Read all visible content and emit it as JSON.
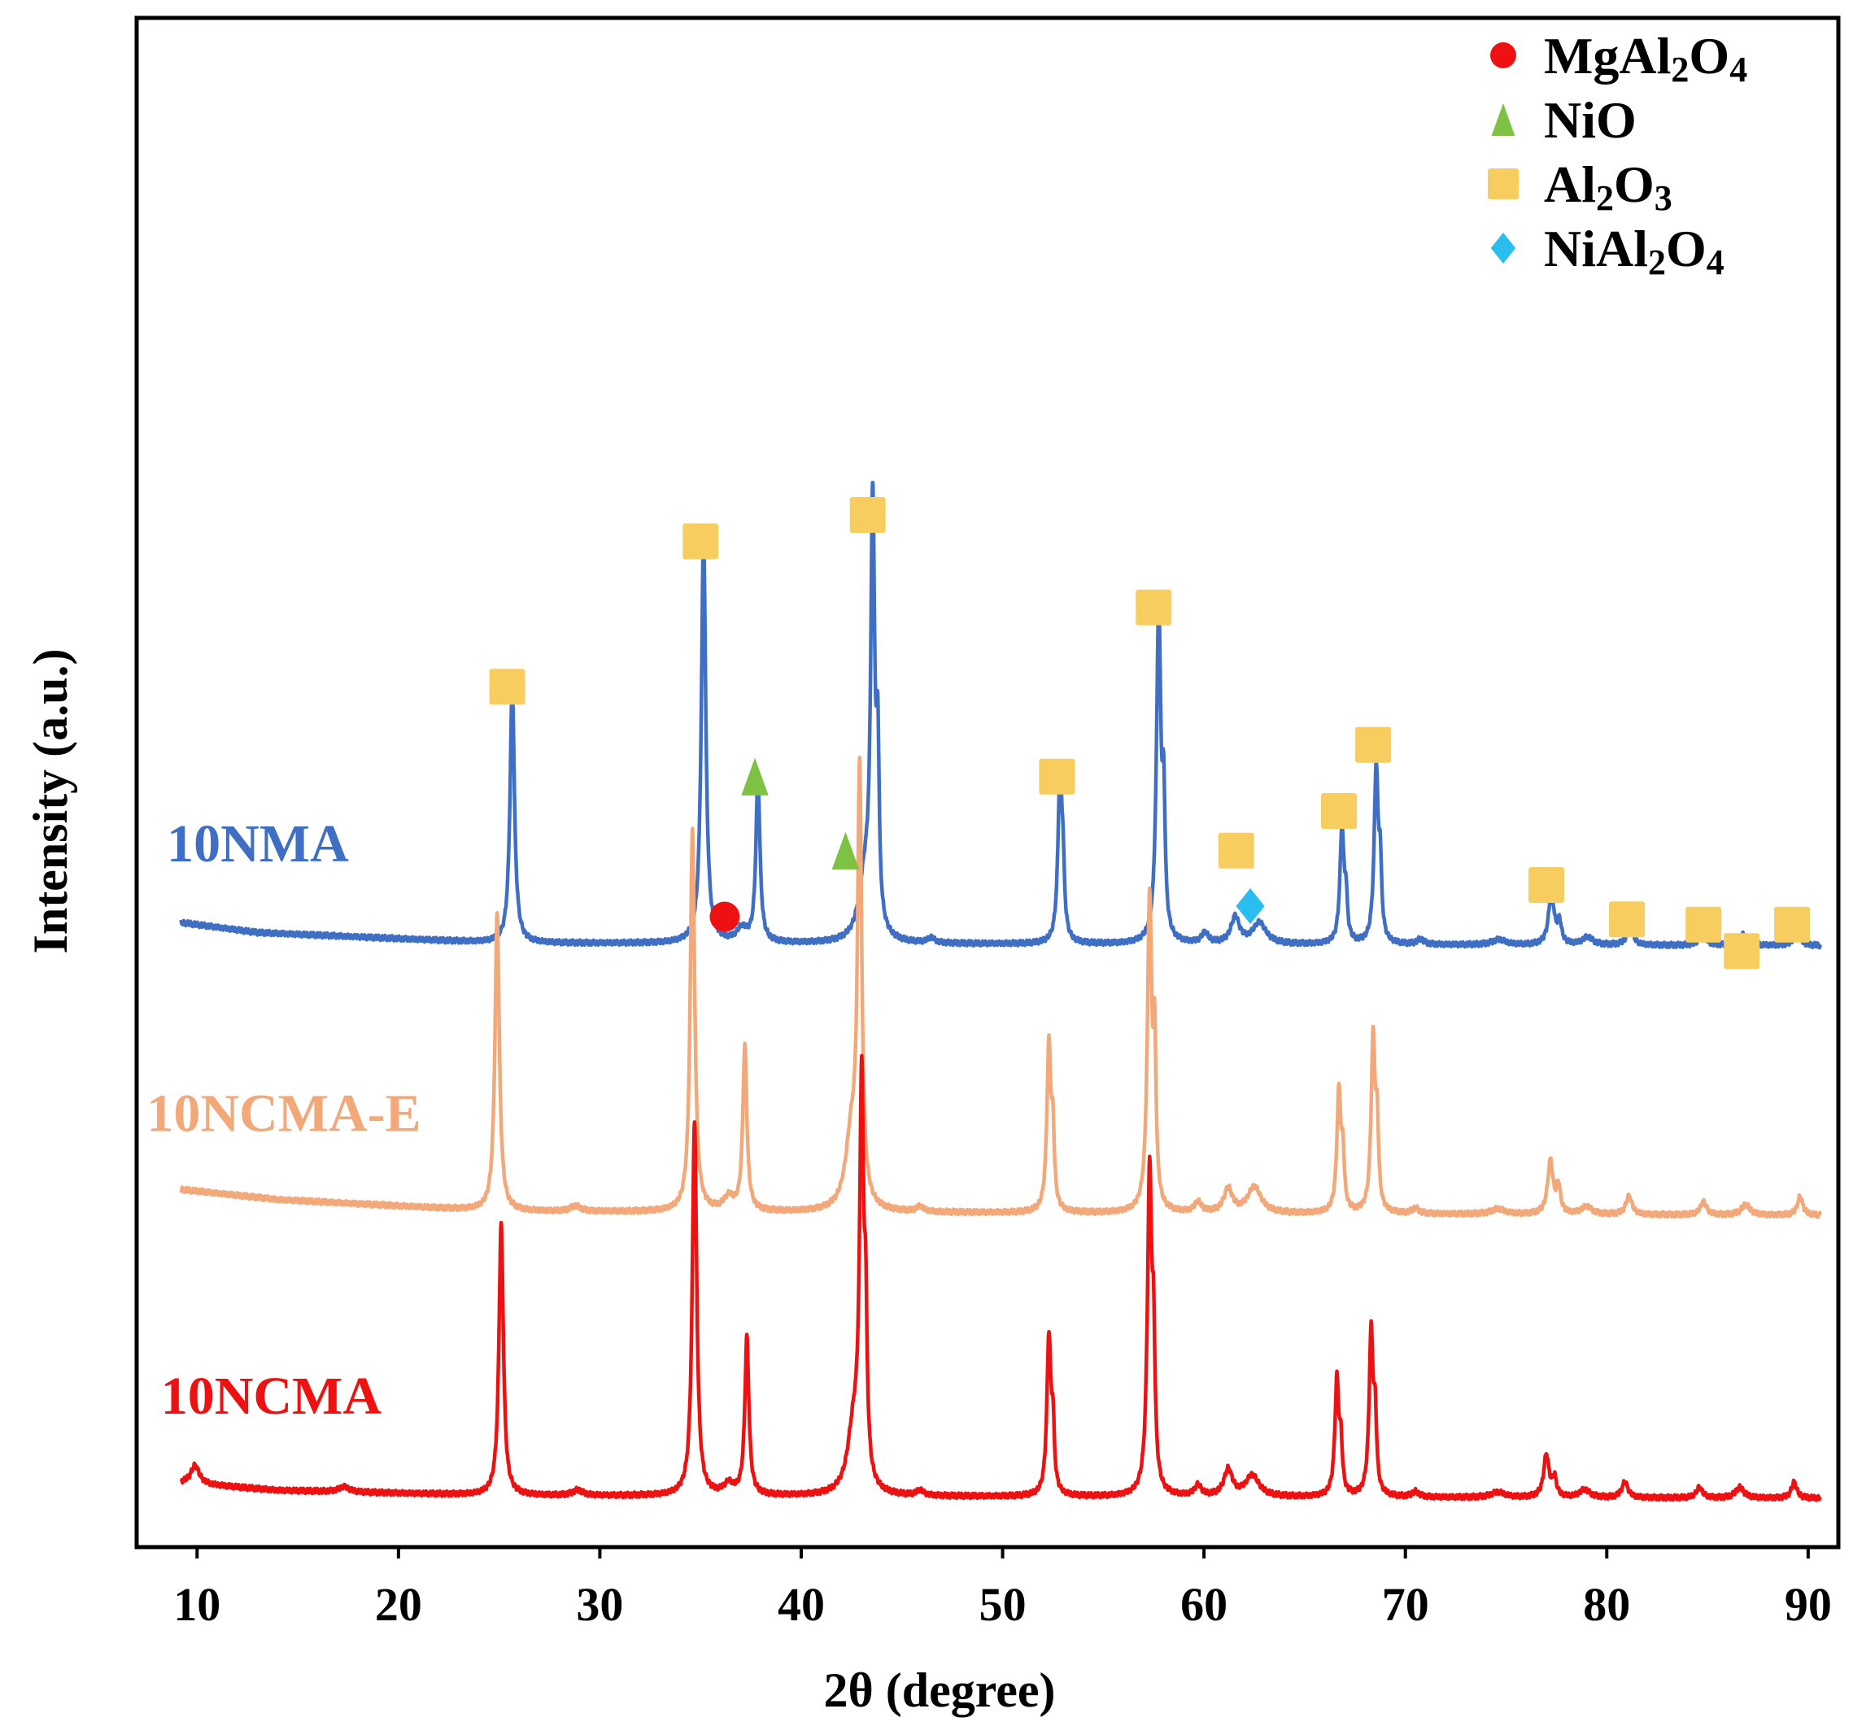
{
  "chart_data": {
    "type": "line",
    "title": "",
    "xlabel": "2θ (degree)",
    "ylabel": "Intensity (a.u.)",
    "xlim": [
      7,
      91.5
    ],
    "xticks": [
      10,
      20,
      30,
      40,
      50,
      60,
      70,
      80,
      90
    ],
    "yticks": [],
    "grid": false,
    "legend_position": "top-right",
    "legend": [
      {
        "marker": "circle",
        "color": "#ee1111",
        "label_parts": [
          {
            "t": "MgAl",
            "sub": false
          },
          {
            "t": "2",
            "sub": true
          },
          {
            "t": "O",
            "sub": false
          },
          {
            "t": "4",
            "sub": true
          }
        ],
        "name": "MgAl2O4"
      },
      {
        "marker": "triangle",
        "color": "#7dc242",
        "label_parts": [
          {
            "t": "NiO",
            "sub": false
          }
        ],
        "name": "NiO"
      },
      {
        "marker": "square",
        "color": "#f8cd5f",
        "label_parts": [
          {
            "t": "Al",
            "sub": false
          },
          {
            "t": "2",
            "sub": true
          },
          {
            "t": "O",
            "sub": false
          },
          {
            "t": "3",
            "sub": true
          }
        ],
        "name": "Al2O3"
      },
      {
        "marker": "diamond",
        "color": "#29bdf0",
        "label_parts": [
          {
            "t": "NiAl",
            "sub": false
          },
          {
            "t": "2",
            "sub": true
          },
          {
            "t": "O",
            "sub": false
          },
          {
            "t": "4",
            "sub": true
          }
        ],
        "name": "NiAl2O4"
      }
    ],
    "series": [
      {
        "name": "10NMA",
        "color": "#3f6fc4",
        "label_x": 8.5,
        "baseline": 0.04,
        "offset": 2.05,
        "x_shift": 0.25,
        "background": [
          {
            "x": 9,
            "y": 0.09
          },
          {
            "x": 13,
            "y": 0.05
          },
          {
            "x": 25,
            "y": 0.01
          },
          {
            "x": 91,
            "y": 0.0
          }
        ],
        "peaks": [
          {
            "x": 25.4,
            "h": 0.98,
            "w": 0.13
          },
          {
            "x": 34.9,
            "h": 1.55,
            "w": 0.13
          },
          {
            "x": 36.8,
            "h": 0.05,
            "w": 0.3
          },
          {
            "x": 37.6,
            "h": 0.62,
            "w": 0.12
          },
          {
            "x": 42.9,
            "h": 0.22,
            "w": 0.35
          },
          {
            "x": 43.3,
            "h": 1.6,
            "w": 0.12
          },
          {
            "x": 43.55,
            "h": 0.6,
            "w": 0.08
          },
          {
            "x": 46.2,
            "h": 0.02,
            "w": 0.2
          },
          {
            "x": 52.6,
            "h": 0.64,
            "w": 0.12
          },
          {
            "x": 52.75,
            "h": 0.2,
            "w": 0.08
          },
          {
            "x": 57.5,
            "h": 1.26,
            "w": 0.13
          },
          {
            "x": 57.75,
            "h": 0.45,
            "w": 0.08
          },
          {
            "x": 59.8,
            "h": 0.04,
            "w": 0.2
          },
          {
            "x": 61.3,
            "h": 0.1,
            "w": 0.25
          },
          {
            "x": 62.5,
            "h": 0.08,
            "w": 0.4
          },
          {
            "x": 66.6,
            "h": 0.43,
            "w": 0.12
          },
          {
            "x": 66.8,
            "h": 0.15,
            "w": 0.08
          },
          {
            "x": 68.3,
            "h": 0.66,
            "w": 0.12
          },
          {
            "x": 68.5,
            "h": 0.25,
            "w": 0.08
          },
          {
            "x": 70.5,
            "h": 0.02,
            "w": 0.2
          },
          {
            "x": 74.4,
            "h": 0.02,
            "w": 0.4
          },
          {
            "x": 77.0,
            "h": 0.2,
            "w": 0.16
          },
          {
            "x": 77.4,
            "h": 0.08,
            "w": 0.12
          },
          {
            "x": 78.8,
            "h": 0.03,
            "w": 0.3
          },
          {
            "x": 80.9,
            "h": 0.07,
            "w": 0.18
          },
          {
            "x": 84.5,
            "h": 0.05,
            "w": 0.18
          },
          {
            "x": 86.5,
            "h": 0.04,
            "w": 0.25
          },
          {
            "x": 89.2,
            "h": 0.07,
            "w": 0.16
          }
        ]
      },
      {
        "name": "10NCMA-E",
        "color": "#f2a878",
        "label_x": 7.5,
        "baseline": 0.05,
        "offset": 1.02,
        "x_shift": 0.0,
        "background": [
          {
            "x": 9,
            "y": 0.1
          },
          {
            "x": 14,
            "y": 0.06
          },
          {
            "x": 25,
            "y": 0.015
          },
          {
            "x": 91,
            "y": 0.0
          }
        ],
        "peaks": [
          {
            "x": 24.9,
            "h": 1.13,
            "w": 0.13
          },
          {
            "x": 28.8,
            "h": 0.02,
            "w": 0.3
          },
          {
            "x": 34.6,
            "h": 1.45,
            "w": 0.13
          },
          {
            "x": 36.4,
            "h": 0.05,
            "w": 0.3
          },
          {
            "x": 37.2,
            "h": 0.62,
            "w": 0.12
          },
          {
            "x": 42.5,
            "h": 0.28,
            "w": 0.35
          },
          {
            "x": 42.9,
            "h": 1.6,
            "w": 0.12
          },
          {
            "x": 45.9,
            "h": 0.02,
            "w": 0.2
          },
          {
            "x": 52.3,
            "h": 0.63,
            "w": 0.12
          },
          {
            "x": 52.5,
            "h": 0.25,
            "w": 0.08
          },
          {
            "x": 57.3,
            "h": 1.18,
            "w": 0.13
          },
          {
            "x": 57.55,
            "h": 0.55,
            "w": 0.08
          },
          {
            "x": 59.7,
            "h": 0.04,
            "w": 0.2
          },
          {
            "x": 61.2,
            "h": 0.09,
            "w": 0.25
          },
          {
            "x": 62.5,
            "h": 0.1,
            "w": 0.4
          },
          {
            "x": 66.7,
            "h": 0.46,
            "w": 0.12
          },
          {
            "x": 66.9,
            "h": 0.18,
            "w": 0.08
          },
          {
            "x": 68.4,
            "h": 0.66,
            "w": 0.12
          },
          {
            "x": 68.6,
            "h": 0.28,
            "w": 0.08
          },
          {
            "x": 70.5,
            "h": 0.02,
            "w": 0.2
          },
          {
            "x": 74.6,
            "h": 0.02,
            "w": 0.4
          },
          {
            "x": 77.2,
            "h": 0.2,
            "w": 0.16
          },
          {
            "x": 77.6,
            "h": 0.1,
            "w": 0.12
          },
          {
            "x": 79.0,
            "h": 0.03,
            "w": 0.3
          },
          {
            "x": 81.1,
            "h": 0.07,
            "w": 0.18
          },
          {
            "x": 84.8,
            "h": 0.05,
            "w": 0.18
          },
          {
            "x": 86.9,
            "h": 0.04,
            "w": 0.25
          },
          {
            "x": 89.6,
            "h": 0.07,
            "w": 0.16
          }
        ]
      },
      {
        "name": "10NCMA",
        "color": "#ee1111",
        "label_x": 8.2,
        "baseline": 0.0,
        "offset": 0.0,
        "x_shift": 0.0,
        "background": [
          {
            "x": 9,
            "y": 0.06
          },
          {
            "x": 14,
            "y": 0.03
          },
          {
            "x": 25,
            "y": 0.01
          },
          {
            "x": 91,
            "y": 0.0
          }
        ],
        "peaks": [
          {
            "x": 9.9,
            "h": 0.07,
            "w": 0.25
          },
          {
            "x": 17.3,
            "h": 0.02,
            "w": 0.3
          },
          {
            "x": 25.1,
            "h": 1.03,
            "w": 0.13
          },
          {
            "x": 28.9,
            "h": 0.02,
            "w": 0.3
          },
          {
            "x": 34.7,
            "h": 1.42,
            "w": 0.13
          },
          {
            "x": 36.4,
            "h": 0.04,
            "w": 0.3
          },
          {
            "x": 37.3,
            "h": 0.6,
            "w": 0.12
          },
          {
            "x": 42.6,
            "h": 0.24,
            "w": 0.35
          },
          {
            "x": 43.0,
            "h": 1.5,
            "w": 0.12
          },
          {
            "x": 43.2,
            "h": 0.5,
            "w": 0.08
          },
          {
            "x": 45.9,
            "h": 0.02,
            "w": 0.2
          },
          {
            "x": 52.3,
            "h": 0.6,
            "w": 0.12
          },
          {
            "x": 52.5,
            "h": 0.22,
            "w": 0.08
          },
          {
            "x": 57.3,
            "h": 1.22,
            "w": 0.13
          },
          {
            "x": 57.5,
            "h": 0.45,
            "w": 0.08
          },
          {
            "x": 59.7,
            "h": 0.04,
            "w": 0.2
          },
          {
            "x": 61.2,
            "h": 0.1,
            "w": 0.25
          },
          {
            "x": 62.4,
            "h": 0.08,
            "w": 0.4
          },
          {
            "x": 66.6,
            "h": 0.44,
            "w": 0.12
          },
          {
            "x": 66.8,
            "h": 0.16,
            "w": 0.08
          },
          {
            "x": 68.3,
            "h": 0.62,
            "w": 0.12
          },
          {
            "x": 68.5,
            "h": 0.25,
            "w": 0.08
          },
          {
            "x": 70.5,
            "h": 0.02,
            "w": 0.2
          },
          {
            "x": 74.6,
            "h": 0.02,
            "w": 0.4
          },
          {
            "x": 77.0,
            "h": 0.16,
            "w": 0.16
          },
          {
            "x": 77.4,
            "h": 0.07,
            "w": 0.12
          },
          {
            "x": 78.9,
            "h": 0.03,
            "w": 0.3
          },
          {
            "x": 80.9,
            "h": 0.06,
            "w": 0.18
          },
          {
            "x": 84.6,
            "h": 0.04,
            "w": 0.18
          },
          {
            "x": 86.6,
            "h": 0.04,
            "w": 0.25
          },
          {
            "x": 89.3,
            "h": 0.06,
            "w": 0.16
          }
        ]
      }
    ],
    "annotations": [
      {
        "phase": "Al2O3",
        "marker": "square",
        "x": 25.4,
        "y": 3.07
      },
      {
        "phase": "Al2O3",
        "marker": "square",
        "x": 35.0,
        "y": 3.62
      },
      {
        "phase": "Al2O3",
        "marker": "square",
        "x": 43.3,
        "y": 3.72
      },
      {
        "phase": "Al2O3",
        "marker": "square",
        "x": 52.7,
        "y": 2.73
      },
      {
        "phase": "Al2O3",
        "marker": "square",
        "x": 57.5,
        "y": 3.37
      },
      {
        "phase": "Al2O3",
        "marker": "square",
        "x": 61.6,
        "y": 2.45
      },
      {
        "phase": "Al2O3",
        "marker": "square",
        "x": 66.7,
        "y": 2.6
      },
      {
        "phase": "Al2O3",
        "marker": "square",
        "x": 68.4,
        "y": 2.85
      },
      {
        "phase": "Al2O3",
        "marker": "square",
        "x": 77.0,
        "y": 2.32
      },
      {
        "phase": "Al2O3",
        "marker": "square",
        "x": 81.0,
        "y": 2.19
      },
      {
        "phase": "Al2O3",
        "marker": "square",
        "x": 84.8,
        "y": 2.17
      },
      {
        "phase": "Al2O3",
        "marker": "square",
        "x": 86.7,
        "y": 2.07
      },
      {
        "phase": "Al2O3",
        "marker": "square",
        "x": 89.2,
        "y": 2.17
      },
      {
        "phase": "NiO",
        "marker": "triangle",
        "x": 37.7,
        "y": 2.73
      },
      {
        "phase": "NiO",
        "marker": "triangle",
        "x": 42.2,
        "y": 2.45
      },
      {
        "phase": "MgAl2O4",
        "marker": "circle",
        "x": 36.2,
        "y": 2.2
      },
      {
        "phase": "NiAl2O4",
        "marker": "diamond",
        "x": 62.3,
        "y": 2.24
      }
    ]
  }
}
